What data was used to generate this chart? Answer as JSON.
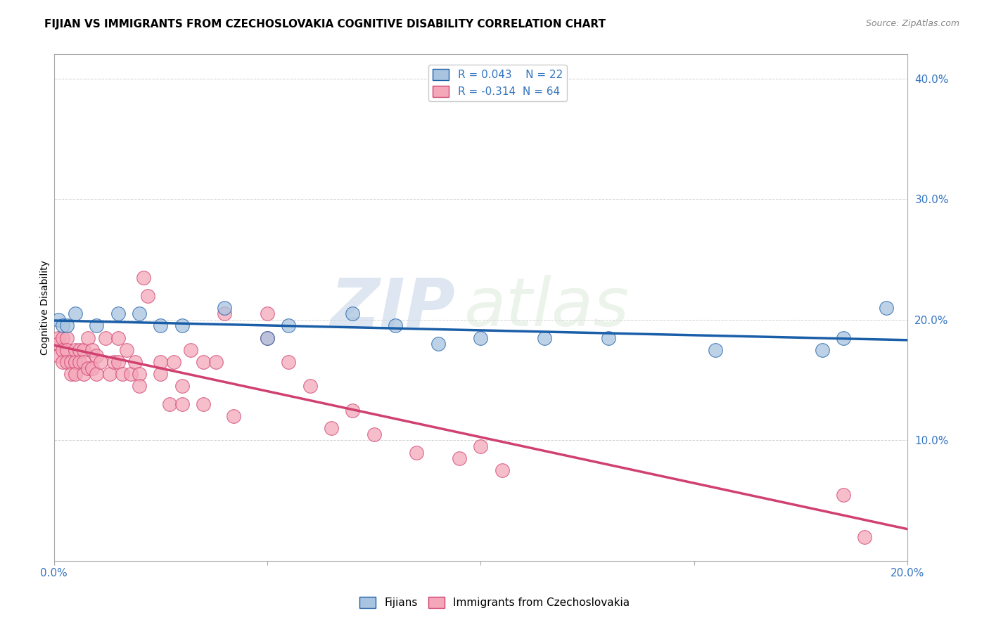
{
  "title": "FIJIAN VS IMMIGRANTS FROM CZECHOSLOVAKIA COGNITIVE DISABILITY CORRELATION CHART",
  "source_text": "Source: ZipAtlas.com",
  "ylabel": "Cognitive Disability",
  "xlim": [
    0.0,
    0.2
  ],
  "ylim": [
    0.0,
    0.42
  ],
  "yticks": [
    0.0,
    0.1,
    0.2,
    0.3,
    0.4
  ],
  "xticks": [
    0.0,
    0.05,
    0.1,
    0.15,
    0.2
  ],
  "xtick_labels": [
    "0.0%",
    "",
    "",
    "",
    "20.0%"
  ],
  "ytick_labels_right": [
    "",
    "10.0%",
    "20.0%",
    "30.0%",
    "40.0%"
  ],
  "fijian_R": 0.043,
  "fijian_N": 22,
  "czech_R": -0.314,
  "czech_N": 64,
  "fijian_color": "#a8c4e0",
  "czech_color": "#f4a7b9",
  "fijian_line_color": "#1a5ea8",
  "czech_line_color": "#d04070",
  "watermark_zip": "ZIP",
  "watermark_atlas": "atlas",
  "fijian_x": [
    0.001,
    0.002,
    0.003,
    0.005,
    0.01,
    0.015,
    0.02,
    0.025,
    0.03,
    0.04,
    0.05,
    0.055,
    0.07,
    0.08,
    0.09,
    0.1,
    0.115,
    0.13,
    0.155,
    0.18,
    0.185,
    0.195
  ],
  "fijian_y": [
    0.2,
    0.195,
    0.195,
    0.205,
    0.195,
    0.205,
    0.205,
    0.195,
    0.195,
    0.21,
    0.185,
    0.195,
    0.205,
    0.195,
    0.18,
    0.185,
    0.185,
    0.185,
    0.175,
    0.175,
    0.185,
    0.21
  ],
  "czech_x": [
    0.001,
    0.001,
    0.001,
    0.002,
    0.002,
    0.002,
    0.003,
    0.003,
    0.003,
    0.004,
    0.004,
    0.005,
    0.005,
    0.005,
    0.006,
    0.006,
    0.007,
    0.007,
    0.007,
    0.008,
    0.008,
    0.009,
    0.009,
    0.01,
    0.01,
    0.011,
    0.012,
    0.013,
    0.014,
    0.015,
    0.015,
    0.016,
    0.017,
    0.018,
    0.019,
    0.02,
    0.02,
    0.021,
    0.022,
    0.025,
    0.025,
    0.027,
    0.028,
    0.03,
    0.03,
    0.032,
    0.035,
    0.035,
    0.038,
    0.04,
    0.042,
    0.05,
    0.05,
    0.055,
    0.06,
    0.065,
    0.07,
    0.075,
    0.085,
    0.095,
    0.1,
    0.105,
    0.185,
    0.19
  ],
  "czech_y": [
    0.185,
    0.18,
    0.17,
    0.185,
    0.175,
    0.165,
    0.185,
    0.175,
    0.165,
    0.165,
    0.155,
    0.175,
    0.165,
    0.155,
    0.175,
    0.165,
    0.175,
    0.165,
    0.155,
    0.185,
    0.16,
    0.175,
    0.16,
    0.17,
    0.155,
    0.165,
    0.185,
    0.155,
    0.165,
    0.185,
    0.165,
    0.155,
    0.175,
    0.155,
    0.165,
    0.155,
    0.145,
    0.235,
    0.22,
    0.165,
    0.155,
    0.13,
    0.165,
    0.145,
    0.13,
    0.175,
    0.165,
    0.13,
    0.165,
    0.205,
    0.12,
    0.205,
    0.185,
    0.165,
    0.145,
    0.11,
    0.125,
    0.105,
    0.09,
    0.085,
    0.095,
    0.075,
    0.055,
    0.02
  ],
  "title_fontsize": 11,
  "label_fontsize": 10,
  "tick_fontsize": 11,
  "legend_fontsize": 11
}
